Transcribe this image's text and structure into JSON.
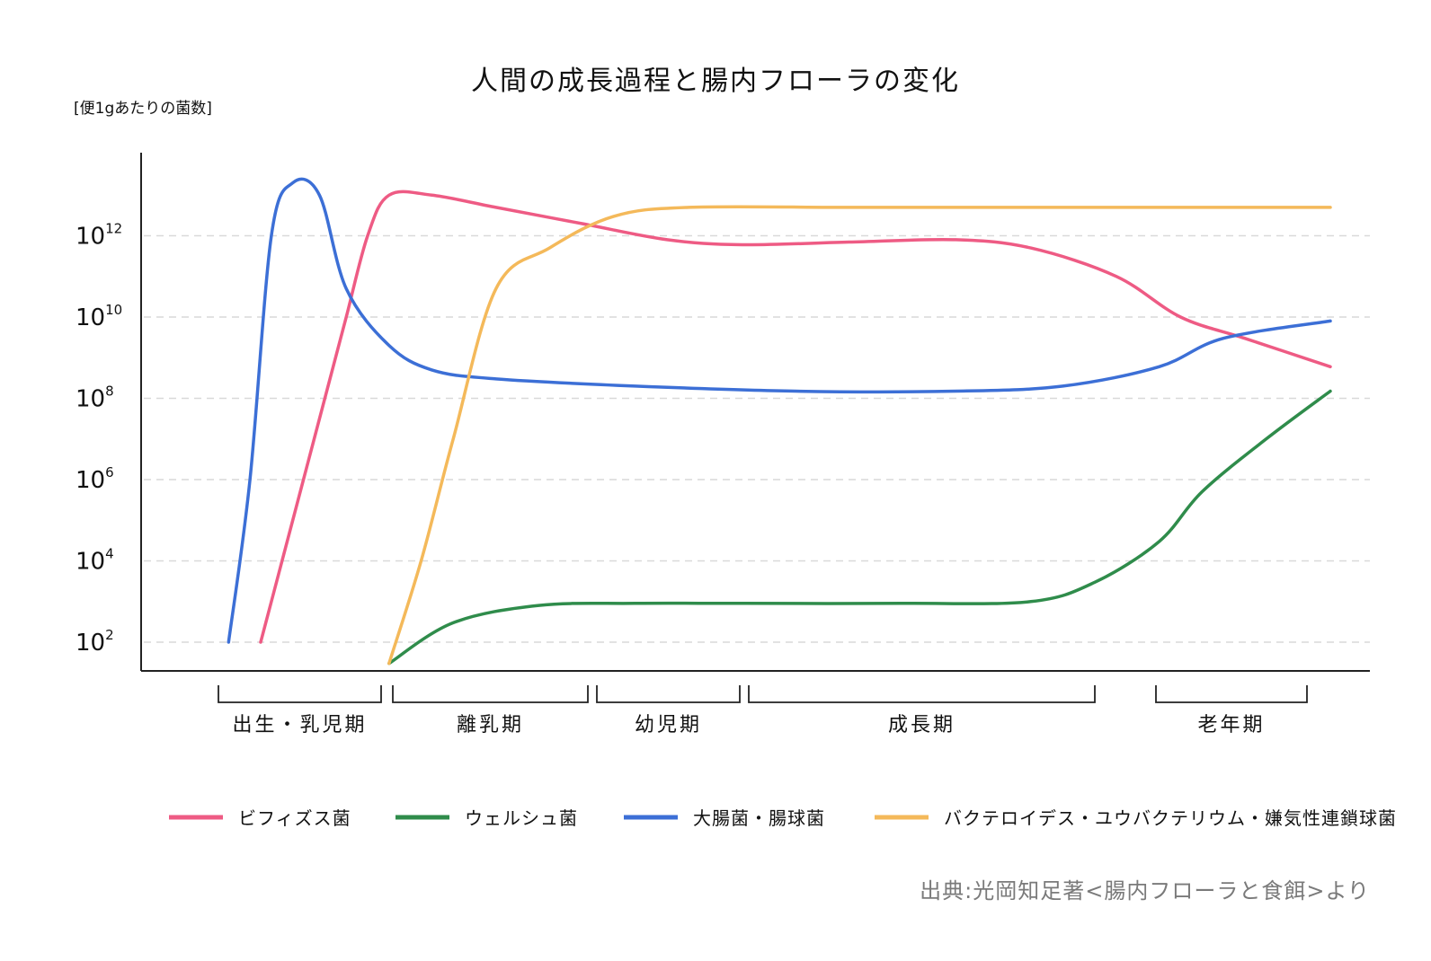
{
  "chart_data": {
    "type": "line",
    "title": "人間の成長過程と腸内フローラの変化",
    "ylabel": "[便1gあたりの菌数]",
    "y_scale": "log10",
    "ylim": [
      1,
      100000000000000.0
    ],
    "yticks": [
      {
        "base": "10",
        "exp": "2"
      },
      {
        "base": "10",
        "exp": "4"
      },
      {
        "base": "10",
        "exp": "6"
      },
      {
        "base": "10",
        "exp": "8"
      },
      {
        "base": "10",
        "exp": "10"
      },
      {
        "base": "10",
        "exp": "12"
      }
    ],
    "grid": "horizontal dashed",
    "legend_position": "bottom",
    "periods": [
      "出生・乳児期",
      "離乳期",
      "幼児期",
      "成長期",
      "老年期"
    ],
    "series": [
      {
        "name": "ビフィズス菌",
        "color": "#ee5b84",
        "points": [
          [
            0.0,
            100.0
          ],
          [
            0.02,
            10000.0
          ],
          [
            0.04,
            1000000.0
          ],
          [
            0.06,
            100000000.0
          ],
          [
            0.08,
            10000000000.0
          ],
          [
            0.1,
            1000000000000.0
          ],
          [
            0.12,
            10000000000000.0
          ],
          [
            0.16,
            10000000000000.0
          ],
          [
            0.22,
            5000000000000.0
          ],
          [
            0.3,
            2000000000000.0
          ],
          [
            0.38,
            800000000000.0
          ],
          [
            0.45,
            600000000000.0
          ],
          [
            0.55,
            700000000000.0
          ],
          [
            0.65,
            800000000000.0
          ],
          [
            0.72,
            500000000000.0
          ],
          [
            0.8,
            100000000000.0
          ],
          [
            0.86,
            10000000000.0
          ],
          [
            0.92,
            3000000000.0
          ],
          [
            1.0,
            600000000.0
          ]
        ]
      },
      {
        "name": "ウェルシュ菌",
        "color": "#2f8c4b",
        "points": [
          [
            0.12,
            30
          ],
          [
            0.18,
            300
          ],
          [
            0.26,
            800
          ],
          [
            0.35,
            900
          ],
          [
            0.45,
            900
          ],
          [
            0.6,
            900
          ],
          [
            0.72,
            1000
          ],
          [
            0.78,
            3000
          ],
          [
            0.84,
            30000.0
          ],
          [
            0.88,
            500000.0
          ],
          [
            0.94,
            10000000.0
          ],
          [
            1.0,
            150000000.0
          ]
        ]
      },
      {
        "name": "大腸菌・腸球菌",
        "color": "#3c6fd6",
        "points": [
          [
            -0.03,
            100.0
          ],
          [
            -0.01,
            1000000.0
          ],
          [
            0.01,
            1000000000000.0
          ],
          [
            0.03,
            20000000000000.0
          ],
          [
            0.055,
            10000000000000.0
          ],
          [
            0.08,
            50000000000.0
          ],
          [
            0.12,
            2000000000.0
          ],
          [
            0.16,
            500000000.0
          ],
          [
            0.22,
            300000000.0
          ],
          [
            0.35,
            200000000.0
          ],
          [
            0.5,
            150000000.0
          ],
          [
            0.65,
            150000000.0
          ],
          [
            0.75,
            200000000.0
          ],
          [
            0.84,
            600000000.0
          ],
          [
            0.9,
            3000000000.0
          ],
          [
            1.0,
            8000000000.0
          ]
        ]
      },
      {
        "name": "バクテロイデス・ユウバクテリウム・嫌気性連鎖球菌",
        "color": "#f4b95a",
        "points": [
          [
            0.12,
            30
          ],
          [
            0.15,
            10000.0
          ],
          [
            0.18,
            10000000.0
          ],
          [
            0.22,
            50000000000.0
          ],
          [
            0.27,
            500000000000.0
          ],
          [
            0.33,
            3000000000000.0
          ],
          [
            0.4,
            5000000000000.0
          ],
          [
            0.55,
            5000000000000.0
          ],
          [
            0.7,
            5000000000000.0
          ],
          [
            0.85,
            5000000000000.0
          ],
          [
            1.0,
            5000000000000.0
          ]
        ]
      }
    ]
  },
  "source": "出典:光岡知足著<腸内フローラと食餌>より"
}
